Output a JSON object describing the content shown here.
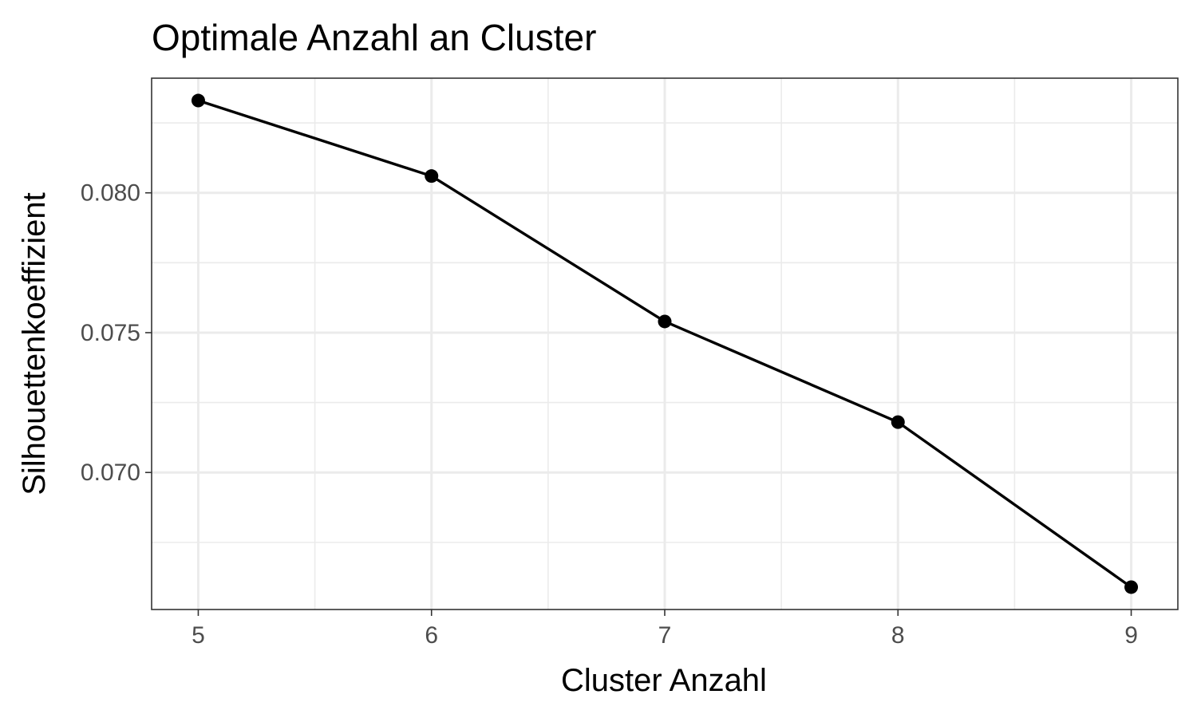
{
  "chart_data": {
    "type": "line",
    "title": "Optimale Anzahl an Cluster",
    "xlabel": "Cluster Anzahl",
    "ylabel": "Silhouettenkoeffizient",
    "x": [
      5,
      6,
      7,
      8,
      9
    ],
    "series": [
      {
        "values": [
          0.0833,
          0.0806,
          0.0754,
          0.0718,
          0.0659
        ]
      }
    ],
    "xlim": [
      4.8,
      9.2
    ],
    "ylim": [
      0.0651,
      0.0841
    ],
    "x_ticks": [
      5,
      6,
      7,
      8,
      9
    ],
    "x_tick_labels": [
      "5",
      "6",
      "7",
      "8",
      "9"
    ],
    "x_minor_ticks": [
      5.5,
      6.5,
      7.5,
      8.5
    ],
    "y_ticks": [
      0.07,
      0.075,
      0.08
    ],
    "y_tick_labels": [
      "0.070",
      "0.075",
      "0.080"
    ],
    "y_minor_ticks": [
      0.0675,
      0.0725,
      0.0775,
      0.0825
    ],
    "grid": true,
    "legend": "none",
    "colors": {
      "series": "#000000"
    }
  }
}
